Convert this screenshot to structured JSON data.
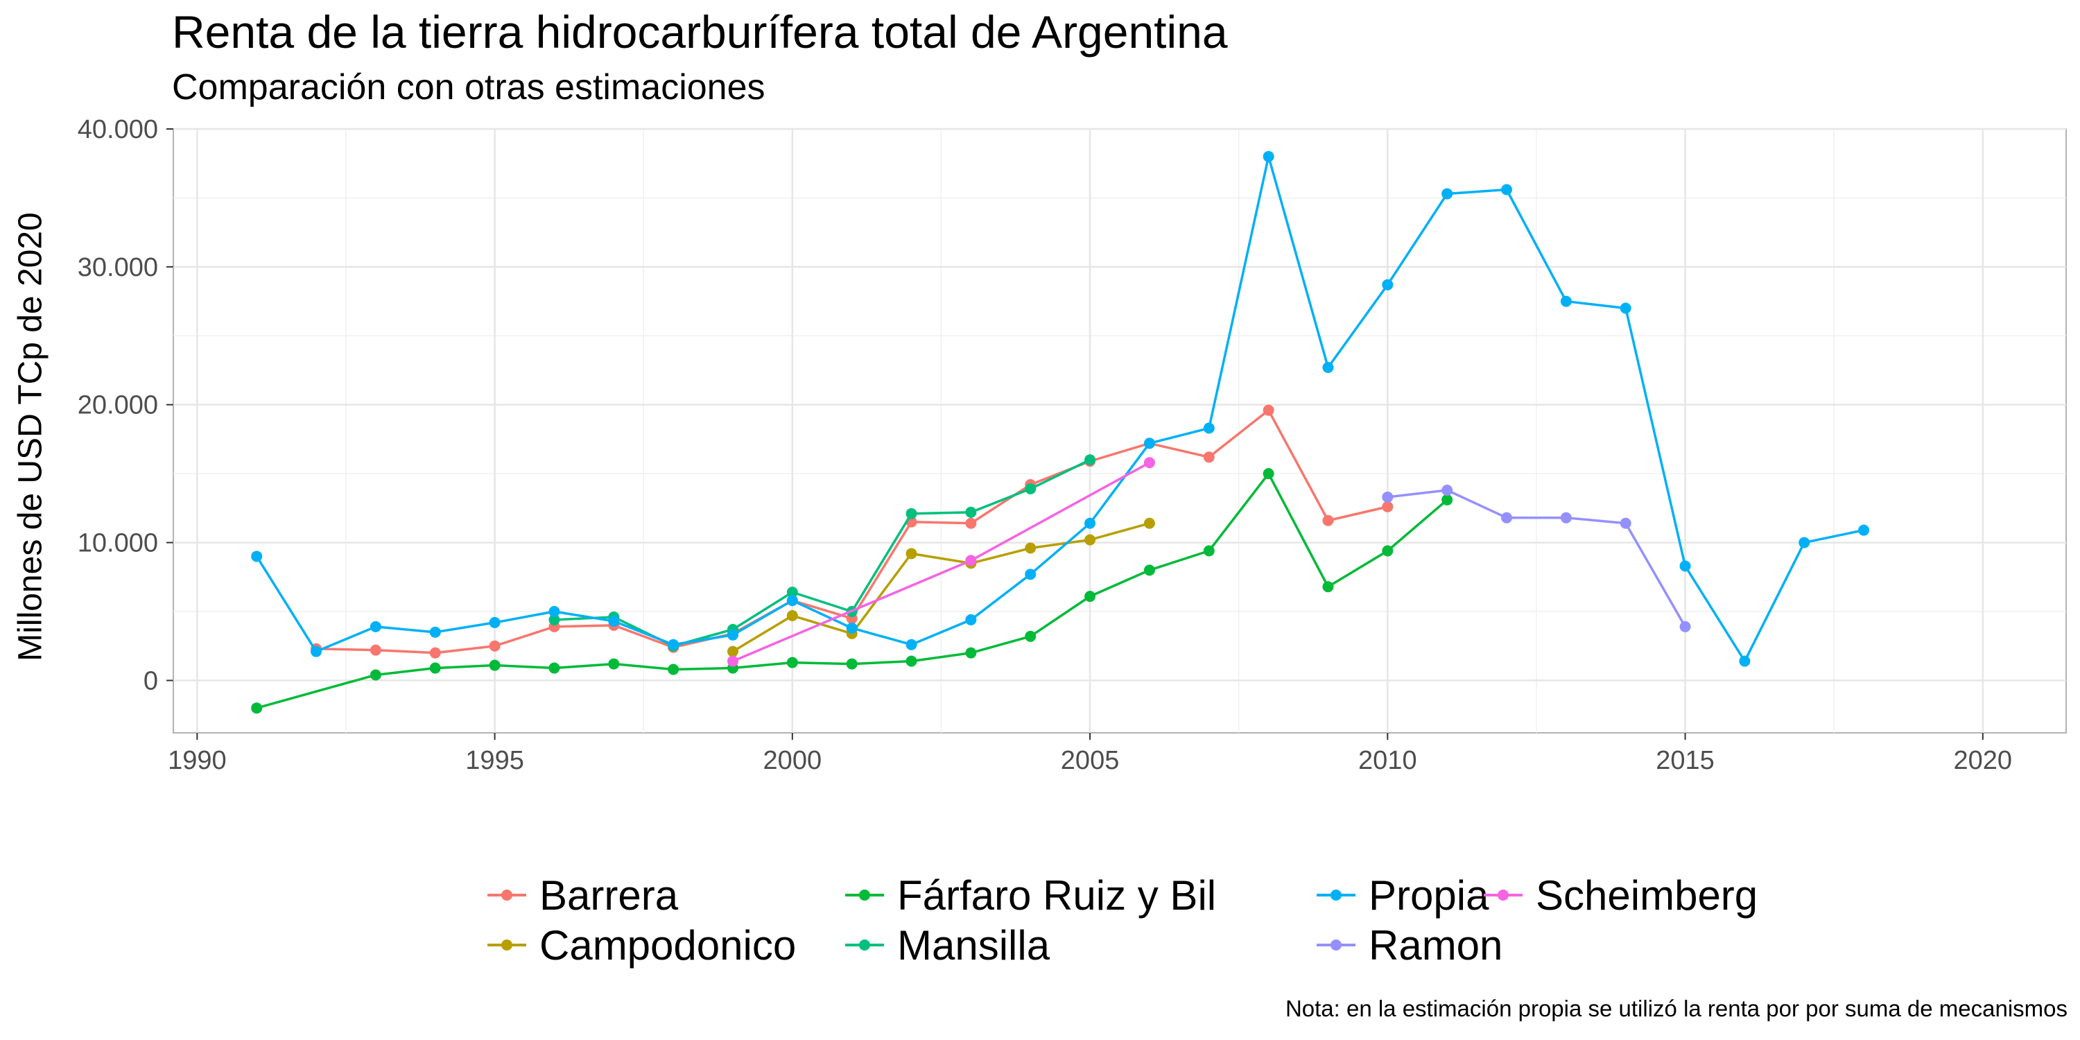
{
  "header": {
    "title": "Renta de la tierra hidrocarburífera total de Argentina",
    "subtitle": "Comparación con otras estimaciones"
  },
  "caption": "Nota: en la estimación propia se utilizó la renta por por suma de mecanismos",
  "chart_data": {
    "type": "line",
    "title": "Renta de la tierra hidrocarburífera total de Argentina",
    "subtitle": "Comparación con otras estimaciones",
    "xlabel": "",
    "ylabel": "Millones de USD TCp de 2020",
    "xlim": [
      1989.6,
      2021.4
    ],
    "ylim": [
      -3800,
      40000
    ],
    "x_ticks": [
      1990,
      1995,
      2000,
      2005,
      2010,
      2015,
      2020
    ],
    "x_tick_labels": [
      "1990",
      "1995",
      "2000",
      "2005",
      "2010",
      "2015",
      "2020"
    ],
    "y_ticks": [
      0,
      10000,
      20000,
      30000,
      40000
    ],
    "y_tick_labels": [
      "0",
      "10.000",
      "20.000",
      "30.000",
      "40.000"
    ],
    "grid": true,
    "legend_position": "bottom",
    "series": [
      {
        "name": "Barrera",
        "color": "#F8766D",
        "x": [
          1992,
          1993,
          1994,
          1995,
          1996,
          1997,
          1998,
          1999,
          2000,
          2001,
          2002,
          2003,
          2004,
          2005,
          2006,
          2007,
          2008,
          2009,
          2010
        ],
        "y": [
          2300,
          2200,
          2000,
          2500,
          3900,
          4000,
          2400,
          3400,
          5800,
          4500,
          11500,
          11400,
          14200,
          15900,
          17200,
          16200,
          19600,
          11600,
          12600
        ]
      },
      {
        "name": "Campodonico",
        "color": "#B79F00",
        "x": [
          1999,
          2000,
          2001,
          2002,
          2003,
          2004,
          2005,
          2006
        ],
        "y": [
          2100,
          4700,
          3400,
          9200,
          8500,
          9600,
          10200,
          11400
        ]
      },
      {
        "name": "Fárfaro Ruiz y Bil",
        "color": "#00BA38",
        "x": [
          1991,
          1993,
          1994,
          1995,
          1996,
          1997,
          1998,
          1999,
          2000,
          2001,
          2002,
          2003,
          2004,
          2005,
          2006,
          2007,
          2008,
          2009,
          2010,
          2011
        ],
        "y": [
          -2000,
          400,
          900,
          1100,
          900,
          1200,
          800,
          900,
          1300,
          1200,
          1400,
          2000,
          3200,
          6100,
          8000,
          9400,
          15000,
          6800,
          9400,
          13100
        ]
      },
      {
        "name": "Mansilla",
        "color": "#00BF7D",
        "x": [
          1996,
          1997,
          1998,
          1999,
          2000,
          2001,
          2002,
          2003,
          2004,
          2005
        ],
        "y": [
          4400,
          4600,
          2500,
          3700,
          6400,
          5000,
          12100,
          12200,
          13900,
          16000
        ]
      },
      {
        "name": "Propia",
        "color": "#00B0F6",
        "x": [
          1991,
          1992,
          1993,
          1994,
          1995,
          1996,
          1997,
          1998,
          1999,
          2000,
          2001,
          2002,
          2003,
          2004,
          2005,
          2006,
          2007,
          2008,
          2009,
          2010,
          2011,
          2012,
          2013,
          2014,
          2015,
          2016,
          2017,
          2018
        ],
        "y": [
          9000,
          2100,
          3900,
          3500,
          4200,
          5000,
          4300,
          2600,
          3300,
          5800,
          3800,
          2600,
          4400,
          7700,
          11400,
          17200,
          18300,
          38000,
          22700,
          28700,
          35300,
          35600,
          27500,
          27000,
          8300,
          1400,
          10000,
          10900
        ]
      },
      {
        "name": "Ramon",
        "color": "#9590FF",
        "x": [
          2010,
          2011,
          2012,
          2013,
          2014,
          2015
        ],
        "y": [
          13300,
          13800,
          11800,
          11800,
          11400,
          3900
        ]
      },
      {
        "name": "Scheimberg",
        "color": "#F564E3",
        "x": [
          1999,
          2003,
          2006
        ],
        "y": [
          1400,
          8700,
          15800
        ]
      }
    ]
  }
}
